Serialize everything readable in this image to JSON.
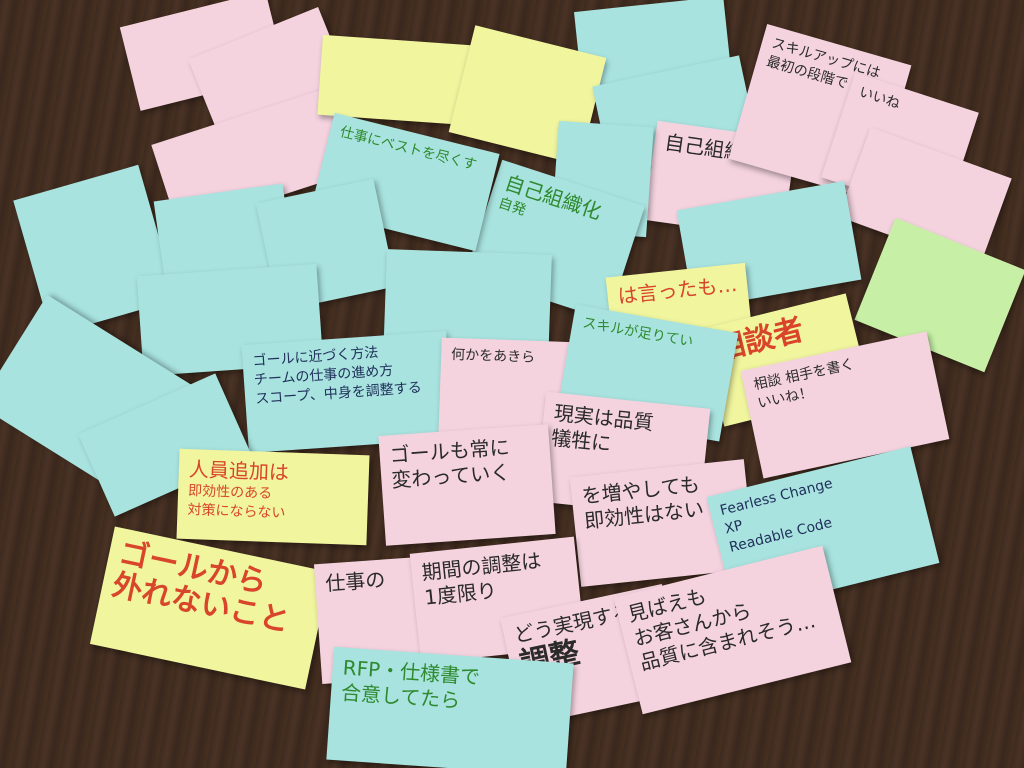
{
  "notes": {
    "n01": {
      "color": "#f4d3df",
      "lines": []
    },
    "n02": {
      "color": "#f4d3df",
      "lines": []
    },
    "n03": {
      "color": "#f4d3df",
      "lines": []
    },
    "n04": {
      "color": "#a8e3df",
      "lines": []
    },
    "n05": {
      "color": "#f0f59e",
      "lines": []
    },
    "n06": {
      "color": "#f0f59e",
      "lines": []
    },
    "n07": {
      "color": "#a8e3df",
      "lines": []
    },
    "n08": {
      "color": "#f4d3df",
      "lines": [
        "自己組織化"
      ]
    },
    "n09": {
      "color": "#f4d3df",
      "lines": [
        "スキルアップには",
        "最初の段階で"
      ]
    },
    "n10": {
      "color": "#f4d3df",
      "lines": [
        "いいね"
      ]
    },
    "n11": {
      "color": "#f4d3df",
      "lines": []
    },
    "n12": {
      "color": "#a8e3df",
      "lines": []
    },
    "n13": {
      "color": "#a8e3df",
      "lines": [
        "自己組織化",
        "自発"
      ]
    },
    "n14": {
      "color": "#a8e3df",
      "lines": []
    },
    "n15": {
      "color": "#a8e3df",
      "lines": [
        "仕事にベストを尽くす"
      ]
    },
    "n16": {
      "color": "#a8e3df",
      "lines": []
    },
    "n17": {
      "color": "#a8e3df",
      "lines": []
    },
    "n18": {
      "color": "#a8e3df",
      "lines": []
    },
    "n19": {
      "color": "#a8e3df",
      "lines": []
    },
    "n20": {
      "color": "#a8e3df",
      "lines": []
    },
    "n21": {
      "color": "#c7f0a6",
      "lines": []
    },
    "n22": {
      "color": "#f0f59e",
      "lines": [
        "は言ったも…"
      ]
    },
    "n23": {
      "color": "#f0f59e",
      "lines": [
        "相談者"
      ]
    },
    "n24": {
      "color": "#a8e3df",
      "lines": []
    },
    "n25": {
      "color": "#a8e3df",
      "lines": [
        "ゴールに近づく方法",
        "チームの仕事の進め方",
        "スコープ、中身を調整する"
      ]
    },
    "n26": {
      "color": "#f4d3df",
      "lines": [
        "何かをあきら"
      ]
    },
    "n27": {
      "color": "#a8e3df",
      "lines": [
        "スキルが足りてい"
      ]
    },
    "n28": {
      "color": "#f4d3df",
      "lines": [
        "現実は品質",
        "犠牲に"
      ]
    },
    "n29": {
      "color": "#f4d3df",
      "lines": [
        "相談 相手を書く",
        "いいね！"
      ]
    },
    "n30": {
      "color": "#a8e3df",
      "lines": []
    },
    "n31": {
      "color": "#f0f59e",
      "lines": [
        "人員追加は",
        "即効性のある",
        "対策にならない"
      ]
    },
    "n32": {
      "color": "#f4d3df",
      "lines": [
        "ゴールも常に",
        "変わっていく"
      ]
    },
    "n33": {
      "color": "#f4d3df",
      "lines": [
        "を増やしても",
        "即効性はない"
      ]
    },
    "n34": {
      "color": "#a8e3df",
      "lines": [
        "Fearless Change",
        "XP",
        "Readable Code"
      ]
    },
    "n35": {
      "color": "#f0f59e",
      "lines": [
        "ゴールから",
        "外れないこと"
      ]
    },
    "n36": {
      "color": "#f4d3df",
      "lines": [
        "仕事の"
      ]
    },
    "n37": {
      "color": "#f4d3df",
      "lines": [
        "期間の調整は",
        "1度限り"
      ]
    },
    "n38": {
      "color": "#f4d3df",
      "lines": [
        "どう実現するか",
        "調整"
      ]
    },
    "n39": {
      "color": "#f4d3df",
      "lines": [
        "見ばえも",
        "お客さんから",
        "品質に含まれそう…"
      ]
    },
    "n40": {
      "color": "#a8e3df",
      "lines": [
        "RFP・仕様書で",
        "合意してたら"
      ]
    }
  }
}
